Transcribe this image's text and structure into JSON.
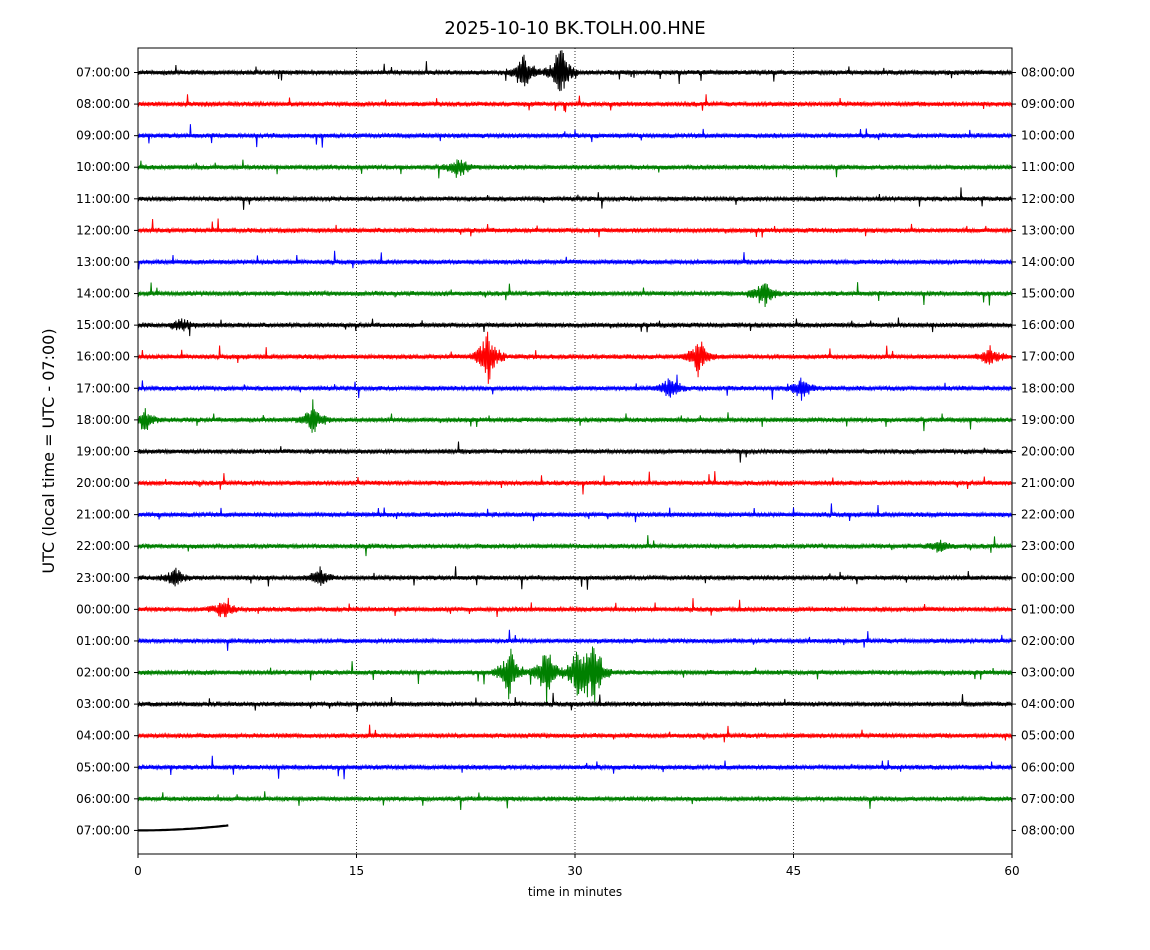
{
  "chart_data": {
    "type": "line",
    "title": "2025-10-10 BK.TOLH.00.HNE",
    "xlabel": "time in minutes",
    "ylabel": "UTC (local time = UTC - 07:00)",
    "xlim": [
      0,
      60
    ],
    "x_ticks": [
      "0",
      "15",
      "30",
      "45",
      "60"
    ],
    "x_tick_values": [
      0,
      15,
      30,
      45,
      60
    ],
    "grid": "vertical dotted lines at 15, 30, 45",
    "trace_colors": [
      "#000000",
      "#ff0000",
      "#0000ff",
      "#008000"
    ],
    "left_labels": [
      "07:00:00",
      "08:00:00",
      "09:00:00",
      "10:00:00",
      "11:00:00",
      "12:00:00",
      "13:00:00",
      "14:00:00",
      "15:00:00",
      "16:00:00",
      "17:00:00",
      "18:00:00",
      "19:00:00",
      "20:00:00",
      "21:00:00",
      "22:00:00",
      "23:00:00",
      "00:00:00",
      "01:00:00",
      "02:00:00",
      "03:00:00",
      "04:00:00",
      "05:00:00",
      "06:00:00",
      "07:00:00"
    ],
    "right_labels": [
      "08:00:00",
      "09:00:00",
      "10:00:00",
      "11:00:00",
      "12:00:00",
      "13:00:00",
      "14:00:00",
      "15:00:00",
      "16:00:00",
      "17:00:00",
      "18:00:00",
      "19:00:00",
      "20:00:00",
      "21:00:00",
      "22:00:00",
      "23:00:00",
      "00:00:00",
      "01:00:00",
      "02:00:00",
      "03:00:00",
      "04:00:00",
      "05:00:00",
      "06:00:00",
      "07:00:00",
      "08:00:00"
    ],
    "events": [
      {
        "row": 0,
        "minute": 26.5,
        "amplitude": 1.6
      },
      {
        "row": 0,
        "minute": 29.0,
        "amplitude": 2.4
      },
      {
        "row": 3,
        "minute": 22.0,
        "amplitude": 0.8
      },
      {
        "row": 7,
        "minute": 43.0,
        "amplitude": 1.2
      },
      {
        "row": 8,
        "minute": 3.0,
        "amplitude": 0.6
      },
      {
        "row": 9,
        "minute": 24.0,
        "amplitude": 2.3
      },
      {
        "row": 9,
        "minute": 38.5,
        "amplitude": 1.6
      },
      {
        "row": 9,
        "minute": 58.5,
        "amplitude": 0.8
      },
      {
        "row": 10,
        "minute": 36.5,
        "amplitude": 0.9
      },
      {
        "row": 10,
        "minute": 45.5,
        "amplitude": 1.0
      },
      {
        "row": 11,
        "minute": 0.5,
        "amplitude": 0.8
      },
      {
        "row": 11,
        "minute": 12.0,
        "amplitude": 1.4
      },
      {
        "row": 15,
        "minute": 55.0,
        "amplitude": 0.5
      },
      {
        "row": 16,
        "minute": 2.5,
        "amplitude": 0.8
      },
      {
        "row": 16,
        "minute": 12.5,
        "amplitude": 0.8
      },
      {
        "row": 17,
        "minute": 5.8,
        "amplitude": 0.7
      },
      {
        "row": 19,
        "minute": 25.5,
        "amplitude": 2.0
      },
      {
        "row": 19,
        "minute": 28.0,
        "amplitude": 2.3
      },
      {
        "row": 19,
        "minute": 30.2,
        "amplitude": 2.2
      },
      {
        "row": 19,
        "minute": 31.3,
        "amplitude": 2.8
      }
    ]
  }
}
